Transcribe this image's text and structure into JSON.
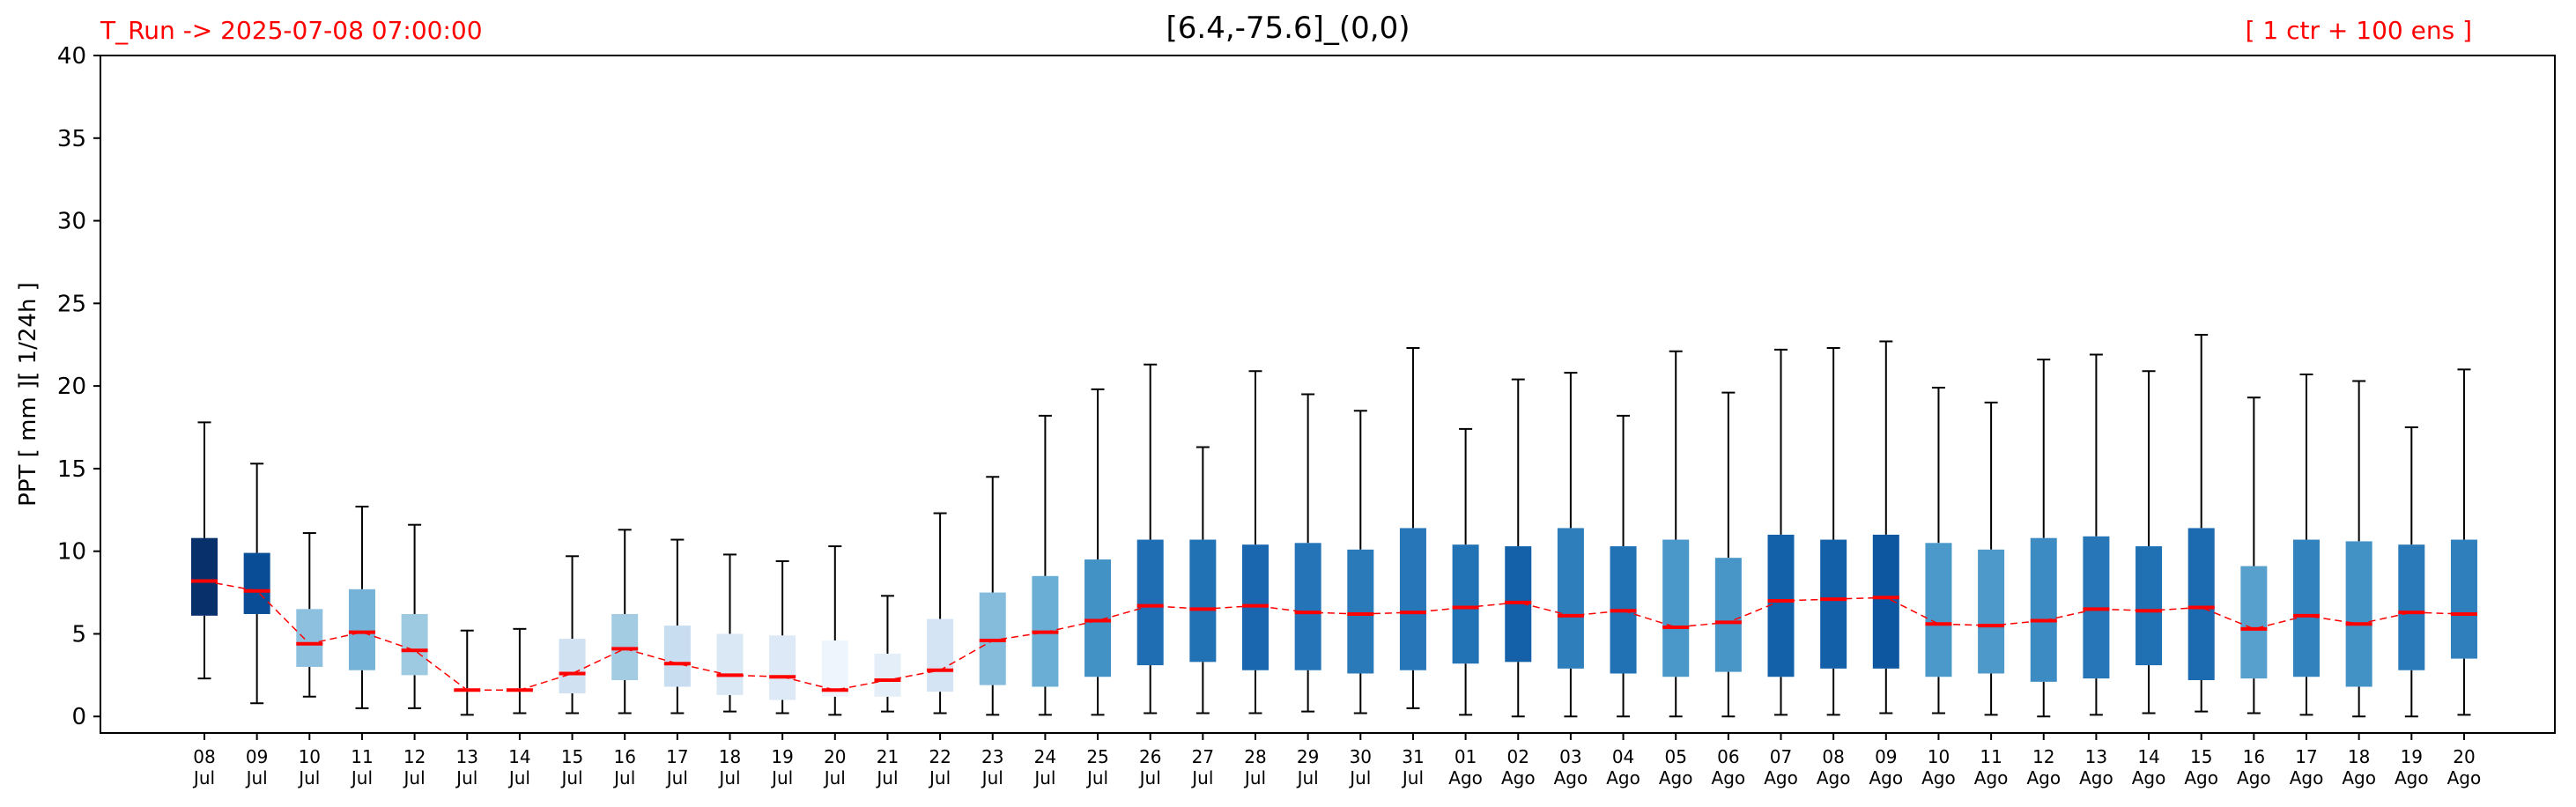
{
  "header": {
    "run_label": "T_Run -> 2025-07-08  07:00:00",
    "title": "[6.4,-75.6]_(0,0)",
    "ensemble_label": "[ 1 ctr + 100 ens ]"
  },
  "chart_data": {
    "type": "box",
    "title": "[6.4,-75.6]_(0,0)",
    "xlabel": "",
    "ylabel": "PPT  [ mm ][ 1/24h ]",
    "ylim": [
      -1,
      40
    ],
    "yticks": [
      0,
      5,
      10,
      15,
      20,
      25,
      30,
      35,
      40
    ],
    "grid": false,
    "median_line_color": "#ff0000",
    "categories": [
      {
        "day": "08",
        "month": "Jul"
      },
      {
        "day": "09",
        "month": "Jul"
      },
      {
        "day": "10",
        "month": "Jul"
      },
      {
        "day": "11",
        "month": "Jul"
      },
      {
        "day": "12",
        "month": "Jul"
      },
      {
        "day": "13",
        "month": "Jul"
      },
      {
        "day": "14",
        "month": "Jul"
      },
      {
        "day": "15",
        "month": "Jul"
      },
      {
        "day": "16",
        "month": "Jul"
      },
      {
        "day": "17",
        "month": "Jul"
      },
      {
        "day": "18",
        "month": "Jul"
      },
      {
        "day": "19",
        "month": "Jul"
      },
      {
        "day": "20",
        "month": "Jul"
      },
      {
        "day": "21",
        "month": "Jul"
      },
      {
        "day": "22",
        "month": "Jul"
      },
      {
        "day": "23",
        "month": "Jul"
      },
      {
        "day": "24",
        "month": "Jul"
      },
      {
        "day": "25",
        "month": "Jul"
      },
      {
        "day": "26",
        "month": "Jul"
      },
      {
        "day": "27",
        "month": "Jul"
      },
      {
        "day": "28",
        "month": "Jul"
      },
      {
        "day": "29",
        "month": "Jul"
      },
      {
        "day": "30",
        "month": "Jul"
      },
      {
        "day": "31",
        "month": "Jul"
      },
      {
        "day": "01",
        "month": "Ago"
      },
      {
        "day": "02",
        "month": "Ago"
      },
      {
        "day": "03",
        "month": "Ago"
      },
      {
        "day": "04",
        "month": "Ago"
      },
      {
        "day": "05",
        "month": "Ago"
      },
      {
        "day": "06",
        "month": "Ago"
      },
      {
        "day": "07",
        "month": "Ago"
      },
      {
        "day": "08",
        "month": "Ago"
      },
      {
        "day": "09",
        "month": "Ago"
      },
      {
        "day": "10",
        "month": "Ago"
      },
      {
        "day": "11",
        "month": "Ago"
      },
      {
        "day": "12",
        "month": "Ago"
      },
      {
        "day": "13",
        "month": "Ago"
      },
      {
        "day": "14",
        "month": "Ago"
      },
      {
        "day": "15",
        "month": "Ago"
      },
      {
        "day": "16",
        "month": "Ago"
      },
      {
        "day": "17",
        "month": "Ago"
      },
      {
        "day": "18",
        "month": "Ago"
      },
      {
        "day": "19",
        "month": "Ago"
      },
      {
        "day": "20",
        "month": "Ago"
      }
    ],
    "boxes": [
      {
        "whisker_low": 2.3,
        "q1": 6.1,
        "median": 8.2,
        "q3": 10.8,
        "whisker_high": 17.8,
        "color": "#08306b"
      },
      {
        "whisker_low": 0.8,
        "q1": 6.2,
        "median": 7.6,
        "q3": 9.9,
        "whisker_high": 15.3,
        "color": "#084d96"
      },
      {
        "whisker_low": 1.2,
        "q1": 3.0,
        "median": 4.4,
        "q3": 6.5,
        "whisker_high": 11.1,
        "color": "#8dc0de"
      },
      {
        "whisker_low": 0.5,
        "q1": 2.8,
        "median": 5.1,
        "q3": 7.7,
        "whisker_high": 12.7,
        "color": "#75b4d8"
      },
      {
        "whisker_low": 0.5,
        "q1": 2.5,
        "median": 4.0,
        "q3": 6.2,
        "whisker_high": 11.6,
        "color": "#9ecae1"
      },
      {
        "whisker_low": 0.1,
        "q1": 1.5,
        "median": 1.6,
        "q3": 1.7,
        "whisker_high": 5.2,
        "color": "#f7fbff"
      },
      {
        "whisker_low": 0.2,
        "q1": 1.5,
        "median": 1.6,
        "q3": 1.7,
        "whisker_high": 5.3,
        "color": "#f7fbff"
      },
      {
        "whisker_low": 0.2,
        "q1": 1.4,
        "median": 2.6,
        "q3": 4.7,
        "whisker_high": 9.7,
        "color": "#d0e1f2"
      },
      {
        "whisker_low": 0.2,
        "q1": 2.2,
        "median": 4.1,
        "q3": 6.2,
        "whisker_high": 11.3,
        "color": "#a3cce3"
      },
      {
        "whisker_low": 0.2,
        "q1": 1.8,
        "median": 3.2,
        "q3": 5.5,
        "whisker_high": 10.7,
        "color": "#c8ddf0"
      },
      {
        "whisker_low": 0.3,
        "q1": 1.3,
        "median": 2.5,
        "q3": 5.0,
        "whisker_high": 9.8,
        "color": "#dae8f6"
      },
      {
        "whisker_low": 0.2,
        "q1": 1.0,
        "median": 2.4,
        "q3": 4.9,
        "whisker_high": 9.4,
        "color": "#dde9f7"
      },
      {
        "whisker_low": 0.1,
        "q1": 1.2,
        "median": 1.6,
        "q3": 4.6,
        "whisker_high": 10.3,
        "color": "#eef5fc"
      },
      {
        "whisker_low": 0.3,
        "q1": 1.2,
        "median": 2.2,
        "q3": 3.8,
        "whisker_high": 7.3,
        "color": "#e3eef9"
      },
      {
        "whisker_low": 0.2,
        "q1": 1.5,
        "median": 2.8,
        "q3": 5.9,
        "whisker_high": 12.3,
        "color": "#d4e4f4"
      },
      {
        "whisker_low": 0.1,
        "q1": 1.9,
        "median": 4.6,
        "q3": 7.5,
        "whisker_high": 14.5,
        "color": "#85bcdc"
      },
      {
        "whisker_low": 0.1,
        "q1": 1.8,
        "median": 5.1,
        "q3": 8.5,
        "whisker_high": 18.2,
        "color": "#6aaed6"
      },
      {
        "whisker_low": 0.1,
        "q1": 2.4,
        "median": 5.8,
        "q3": 9.5,
        "whisker_high": 19.8,
        "color": "#4292c6"
      },
      {
        "whisker_low": 0.2,
        "q1": 3.1,
        "median": 6.7,
        "q3": 10.7,
        "whisker_high": 21.3,
        "color": "#1f6eb3"
      },
      {
        "whisker_low": 0.2,
        "q1": 3.3,
        "median": 6.5,
        "q3": 10.7,
        "whisker_high": 16.3,
        "color": "#2171b5"
      },
      {
        "whisker_low": 0.2,
        "q1": 2.8,
        "median": 6.7,
        "q3": 10.4,
        "whisker_high": 20.9,
        "color": "#1a67af"
      },
      {
        "whisker_low": 0.3,
        "q1": 2.8,
        "median": 6.3,
        "q3": 10.5,
        "whisker_high": 19.5,
        "color": "#2474b7"
      },
      {
        "whisker_low": 0.2,
        "q1": 2.6,
        "median": 6.2,
        "q3": 10.1,
        "whisker_high": 18.5,
        "color": "#2a7ab9"
      },
      {
        "whisker_low": 0.5,
        "q1": 2.8,
        "median": 6.3,
        "q3": 11.4,
        "whisker_high": 22.3,
        "color": "#2676b8"
      },
      {
        "whisker_low": 0.1,
        "q1": 3.2,
        "median": 6.6,
        "q3": 10.4,
        "whisker_high": 17.4,
        "color": "#2272b6"
      },
      {
        "whisker_low": 0.0,
        "q1": 3.3,
        "median": 6.9,
        "q3": 10.3,
        "whisker_high": 20.4,
        "color": "#1561a9"
      },
      {
        "whisker_low": 0.0,
        "q1": 2.9,
        "median": 6.1,
        "q3": 11.4,
        "whisker_high": 20.8,
        "color": "#2e7ebc"
      },
      {
        "whisker_low": 0.0,
        "q1": 2.6,
        "median": 6.4,
        "q3": 10.3,
        "whisker_high": 18.2,
        "color": "#2171b5"
      },
      {
        "whisker_low": 0.0,
        "q1": 2.4,
        "median": 5.4,
        "q3": 10.7,
        "whisker_high": 22.1,
        "color": "#4a98c9"
      },
      {
        "whisker_low": 0.0,
        "q1": 2.7,
        "median": 5.7,
        "q3": 9.6,
        "whisker_high": 19.6,
        "color": "#4896c8"
      },
      {
        "whisker_low": 0.1,
        "q1": 2.4,
        "median": 7.0,
        "q3": 11.0,
        "whisker_high": 22.2,
        "color": "#1361a9"
      },
      {
        "whisker_low": 0.1,
        "q1": 2.9,
        "median": 7.1,
        "q3": 10.7,
        "whisker_high": 22.3,
        "color": "#1460a8"
      },
      {
        "whisker_low": 0.2,
        "q1": 2.9,
        "median": 7.2,
        "q3": 11.0,
        "whisker_high": 22.7,
        "color": "#0d57a1"
      },
      {
        "whisker_low": 0.2,
        "q1": 2.4,
        "median": 5.6,
        "q3": 10.5,
        "whisker_high": 19.9,
        "color": "#4b98ca"
      },
      {
        "whisker_low": 0.1,
        "q1": 2.6,
        "median": 5.5,
        "q3": 10.1,
        "whisker_high": 19.0,
        "color": "#4d99ca"
      },
      {
        "whisker_low": 0.0,
        "q1": 2.1,
        "median": 5.8,
        "q3": 10.8,
        "whisker_high": 21.6,
        "color": "#3c8cc3"
      },
      {
        "whisker_low": 0.1,
        "q1": 2.3,
        "median": 6.5,
        "q3": 10.9,
        "whisker_high": 21.9,
        "color": "#2676b8"
      },
      {
        "whisker_low": 0.2,
        "q1": 3.1,
        "median": 6.4,
        "q3": 10.3,
        "whisker_high": 20.9,
        "color": "#2070b4"
      },
      {
        "whisker_low": 0.3,
        "q1": 2.2,
        "median": 6.6,
        "q3": 11.4,
        "whisker_high": 23.1,
        "color": "#1c6ab0"
      },
      {
        "whisker_low": 0.2,
        "q1": 2.3,
        "median": 5.3,
        "q3": 9.1,
        "whisker_high": 19.3,
        "color": "#57a0ce"
      },
      {
        "whisker_low": 0.1,
        "q1": 2.4,
        "median": 6.1,
        "q3": 10.7,
        "whisker_high": 20.7,
        "color": "#3282be"
      },
      {
        "whisker_low": 0.0,
        "q1": 1.8,
        "median": 5.6,
        "q3": 10.6,
        "whisker_high": 20.3,
        "color": "#4392c6"
      },
      {
        "whisker_low": 0.0,
        "q1": 2.8,
        "median": 6.3,
        "q3": 10.4,
        "whisker_high": 17.5,
        "color": "#2a7ab9"
      },
      {
        "whisker_low": 0.1,
        "q1": 3.5,
        "median": 6.2,
        "q3": 10.7,
        "whisker_high": 21.0,
        "color": "#2f7fbc"
      }
    ]
  }
}
